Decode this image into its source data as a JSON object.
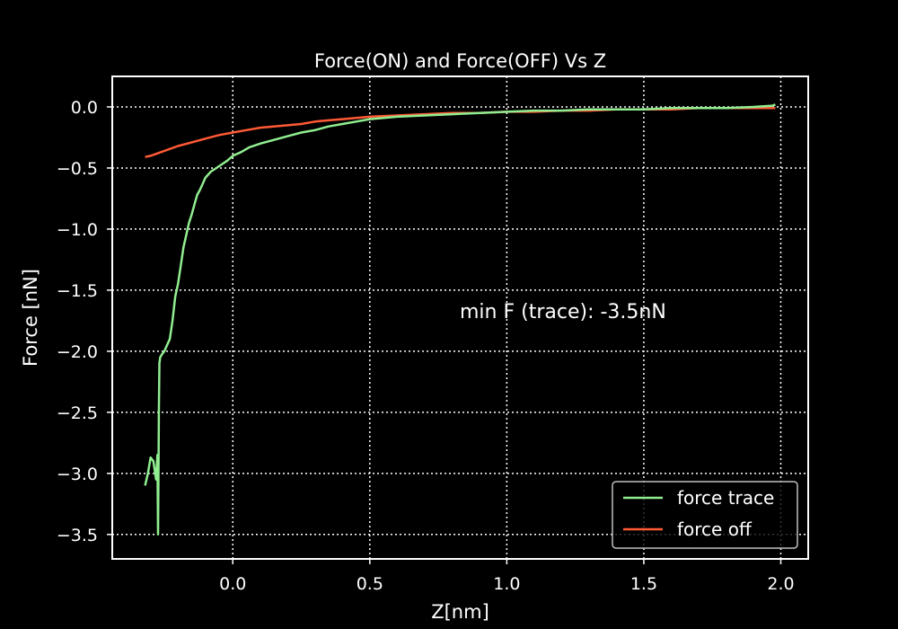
{
  "chart_data": {
    "type": "line",
    "title": "Force(ON) and Force(OFF) Vs Z",
    "xlabel": "Z[nm]",
    "ylabel": "Force [nN]",
    "xlim": [
      -0.44,
      2.1
    ],
    "ylim": [
      -3.7,
      0.25
    ],
    "xticks": [
      0.0,
      0.5,
      1.0,
      1.5,
      2.0
    ],
    "xtick_labels": [
      "0.0",
      "0.5",
      "1.0",
      "1.5",
      "2.0"
    ],
    "yticks": [
      0.0,
      -0.5,
      -1.0,
      -1.5,
      -2.0,
      -2.5,
      -3.0,
      -3.5
    ],
    "ytick_labels": [
      "0.0",
      "−0.5",
      "−1.0",
      "−1.5",
      "−2.0",
      "−2.5",
      "−3.0",
      "−3.5"
    ],
    "grid": true,
    "grid_style": "dotted",
    "legend_position": "lower-right",
    "annotation": "min F (trace): -3.5nN",
    "colors": {
      "background": "#000000",
      "axes": "#ffffff",
      "text": "#ffffff",
      "grid": "#ffffff"
    },
    "series": [
      {
        "name": "force trace",
        "color": "#90ee90",
        "x": [
          -0.32,
          -0.31,
          -0.3,
          -0.29,
          -0.28,
          -0.275,
          -0.273,
          -0.271,
          -0.27,
          -0.268,
          -0.265,
          -0.26,
          -0.25,
          -0.24,
          -0.23,
          -0.22,
          -0.21,
          -0.2,
          -0.19,
          -0.18,
          -0.17,
          -0.16,
          -0.15,
          -0.14,
          -0.13,
          -0.12,
          -0.11,
          -0.1,
          -0.08,
          -0.06,
          -0.04,
          -0.02,
          0.0,
          0.03,
          0.06,
          0.1,
          0.15,
          0.2,
          0.25,
          0.3,
          0.35,
          0.4,
          0.45,
          0.5,
          0.6,
          0.7,
          0.8,
          0.9,
          1.0,
          1.1,
          1.2,
          1.3,
          1.4,
          1.5,
          1.6,
          1.7,
          1.8,
          1.9,
          1.97,
          1.98
        ],
        "y": [
          -3.1,
          -3.0,
          -2.87,
          -2.9,
          -3.05,
          -2.85,
          -3.5,
          -2.9,
          -2.5,
          -2.1,
          -2.05,
          -2.03,
          -2.0,
          -1.95,
          -1.9,
          -1.75,
          -1.55,
          -1.45,
          -1.3,
          -1.15,
          -1.05,
          -0.95,
          -0.88,
          -0.8,
          -0.72,
          -0.68,
          -0.63,
          -0.58,
          -0.53,
          -0.5,
          -0.47,
          -0.44,
          -0.4,
          -0.37,
          -0.33,
          -0.3,
          -0.27,
          -0.24,
          -0.21,
          -0.19,
          -0.16,
          -0.14,
          -0.12,
          -0.1,
          -0.08,
          -0.07,
          -0.06,
          -0.05,
          -0.04,
          -0.03,
          -0.03,
          -0.02,
          -0.02,
          -0.02,
          -0.01,
          -0.01,
          -0.01,
          0.0,
          0.01,
          0.02
        ]
      },
      {
        "name": "force off",
        "color": "#ff5a36",
        "x": [
          -0.32,
          -0.3,
          -0.25,
          -0.2,
          -0.15,
          -0.1,
          -0.05,
          0.0,
          0.05,
          0.1,
          0.15,
          0.2,
          0.25,
          0.3,
          0.35,
          0.4,
          0.45,
          0.5,
          0.6,
          0.7,
          0.8,
          0.9,
          1.0,
          1.1,
          1.2,
          1.3,
          1.4,
          1.5,
          1.6,
          1.7,
          1.8,
          1.9,
          1.98
        ],
        "y": [
          -0.41,
          -0.4,
          -0.36,
          -0.32,
          -0.29,
          -0.26,
          -0.23,
          -0.21,
          -0.19,
          -0.17,
          -0.16,
          -0.15,
          -0.14,
          -0.12,
          -0.11,
          -0.1,
          -0.09,
          -0.08,
          -0.07,
          -0.06,
          -0.05,
          -0.05,
          -0.04,
          -0.04,
          -0.03,
          -0.03,
          -0.02,
          -0.02,
          -0.02,
          -0.01,
          -0.01,
          -0.01,
          -0.01
        ]
      }
    ]
  }
}
